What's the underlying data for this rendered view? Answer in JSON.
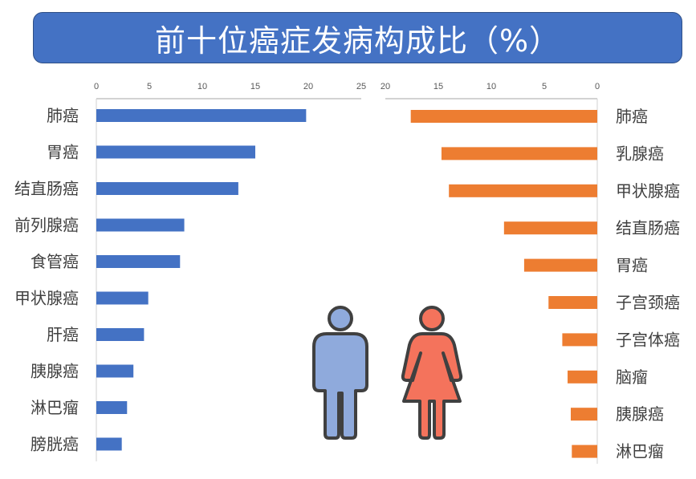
{
  "title": "前十位癌症发病构成比（%）",
  "colors": {
    "banner": "#4472c4",
    "male_bar": "#4472c4",
    "female_bar": "#ed7d31",
    "male_icon": "#8faadc",
    "female_icon": "#f4735c",
    "icon_outline": "#404040"
  },
  "icons": {
    "male": "man-icon",
    "female": "woman-icon"
  },
  "chart_data": [
    {
      "type": "bar",
      "orientation": "horizontal",
      "xlim": [
        0,
        25
      ],
      "ticks": [
        0,
        5,
        10,
        15,
        20,
        25
      ],
      "axis_position": "top",
      "categories": [
        "肺癌",
        "胃癌",
        "结直肠癌",
        "前列腺癌",
        "食管癌",
        "甲状腺癌",
        "肝癌",
        "胰腺癌",
        "淋巴瘤",
        "膀胱癌"
      ],
      "values": [
        19.8,
        15.0,
        13.4,
        8.3,
        7.9,
        4.9,
        4.5,
        3.5,
        2.9,
        2.4
      ],
      "color": "#4472c4"
    },
    {
      "type": "bar",
      "orientation": "horizontal",
      "reversed_x": true,
      "xlim": [
        0,
        20
      ],
      "ticks": [
        20,
        15,
        10,
        5,
        0
      ],
      "axis_position": "top",
      "categories": [
        "肺癌",
        "乳腺癌",
        "甲状腺癌",
        "结直肠癌",
        "胃癌",
        "子宫颈癌",
        "子宫体癌",
        "脑瘤",
        "胰腺癌",
        "淋巴瘤"
      ],
      "values": [
        17.6,
        14.7,
        14.0,
        8.8,
        6.9,
        4.6,
        3.3,
        2.8,
        2.5,
        2.4
      ],
      "color": "#ed7d31"
    }
  ]
}
